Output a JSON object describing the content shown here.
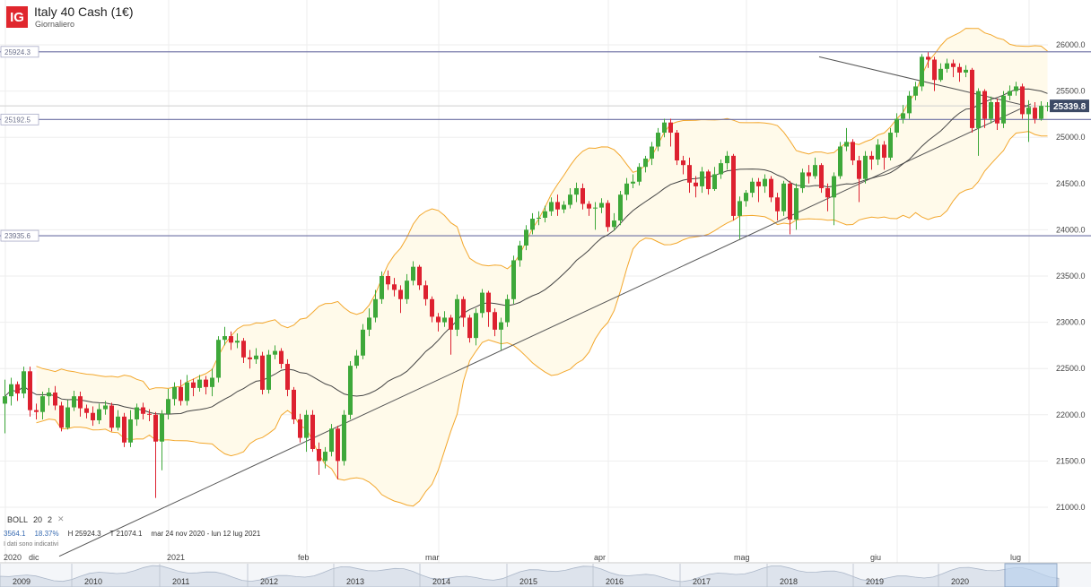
{
  "header": {
    "logo": "IG",
    "title": "Italy 40 Cash (1€)",
    "subtitle": "Giornaliero"
  },
  "indicator": {
    "name": "BOLL",
    "period": "20",
    "mult": "2",
    "close_icon": "close-icon",
    "stat1": "3564.1",
    "stat2": "18.37%",
    "stat3": "H 25924.3",
    "stat4": "T 21074.1",
    "range": "mar 24 nov 2020 - lun 12 lug 2021",
    "note": "I dati sono indicativi"
  },
  "navigator": {
    "years": [
      "2009",
      "2010",
      "2011",
      "2012",
      "2013",
      "2014",
      "2015",
      "2016",
      "2017",
      "2018",
      "2019",
      "2020"
    ]
  },
  "chart_data": {
    "type": "candlestick",
    "y_axis": {
      "min": 21000,
      "max": 26000,
      "step": 500,
      "position": "right",
      "tick_labels": [
        "21000.0",
        "21500.0",
        "22000.0",
        "22500.0",
        "23000.0",
        "23500.0",
        "24000.0",
        "24500.0",
        "25000.0",
        "25500.0",
        "26000.0"
      ]
    },
    "x_axis": {
      "labels": [
        "2020",
        "dic",
        "2021",
        "feb",
        "mar",
        "apr",
        "mag",
        "giu",
        "lug"
      ]
    },
    "horizontal_lines": [
      {
        "value": 25924.3,
        "label": "25924.3"
      },
      {
        "value": 25192.5,
        "label": "25192.5"
      },
      {
        "value": 23935.6,
        "label": "23935.6"
      }
    ],
    "current_price": {
      "value": 25339.8,
      "label": "25339.8"
    },
    "trendlines": [
      {
        "from": {
          "bar": 9,
          "value": 20470
        },
        "to": {
          "bar": 158,
          "value": 25180
        }
      },
      {
        "from": {
          "bar": 130,
          "value": 25870
        },
        "to": {
          "bar": 158,
          "value": 25420
        }
      }
    ],
    "colors": {
      "up": "#3ea83a",
      "down": "#dd2130",
      "band": "#f3a72c",
      "band_fill": "#fffaea",
      "sma": "#444444",
      "level_line": "#6b6fa3",
      "current_tag": "#3d4a66"
    },
    "candles": [
      [
        22120,
        22200,
        22380,
        21800
      ],
      [
        22200,
        22330,
        22400,
        22100
      ],
      [
        22330,
        22230,
        22360,
        22150
      ],
      [
        22230,
        22470,
        22520,
        22180
      ],
      [
        22470,
        22050,
        22520,
        21980
      ],
      [
        22050,
        22030,
        22120,
        21950
      ],
      [
        22030,
        22200,
        22250,
        21950
      ],
      [
        22200,
        22240,
        22290,
        22100
      ],
      [
        22240,
        22100,
        22310,
        22050
      ],
      [
        22100,
        21860,
        22140,
        21820
      ],
      [
        21860,
        22080,
        22160,
        21840
      ],
      [
        22080,
        22200,
        22260,
        22040
      ],
      [
        22200,
        22070,
        22250,
        21980
      ],
      [
        22070,
        22020,
        22110,
        21960
      ],
      [
        22020,
        21940,
        22090,
        21880
      ],
      [
        21940,
        22060,
        22120,
        21900
      ],
      [
        22060,
        22100,
        22150,
        22000
      ],
      [
        22100,
        21860,
        22130,
        21820
      ],
      [
        21860,
        21980,
        22050,
        21830
      ],
      [
        21980,
        21700,
        22020,
        21650
      ],
      [
        21700,
        21950,
        22050,
        21650
      ],
      [
        21950,
        22080,
        22120,
        21880
      ],
      [
        22080,
        22010,
        22130,
        21950
      ],
      [
        22010,
        22000,
        22060,
        21930
      ],
      [
        22000,
        21710,
        22030,
        21100
      ],
      [
        21710,
        22010,
        22050,
        21400
      ],
      [
        22010,
        22170,
        22280,
        21950
      ],
      [
        22170,
        22300,
        22350,
        22100
      ],
      [
        22300,
        22150,
        22380,
        22100
      ],
      [
        22150,
        22350,
        22430,
        22100
      ],
      [
        22350,
        22290,
        22390,
        22200
      ],
      [
        22290,
        22380,
        22430,
        22250
      ],
      [
        22380,
        22300,
        22420,
        22220
      ],
      [
        22300,
        22400,
        22500,
        22200
      ],
      [
        22400,
        22810,
        22850,
        22350
      ],
      [
        22810,
        22850,
        22950,
        22750
      ],
      [
        22850,
        22780,
        22900,
        22700
      ],
      [
        22780,
        22800,
        22880,
        22720
      ],
      [
        22800,
        22620,
        22830,
        22560
      ],
      [
        22620,
        22600,
        22700,
        22500
      ],
      [
        22600,
        22640,
        22720,
        22550
      ],
      [
        22640,
        22270,
        22680,
        22220
      ],
      [
        22270,
        22650,
        22700,
        22230
      ],
      [
        22650,
        22690,
        22750,
        22600
      ],
      [
        22690,
        22550,
        22720,
        22500
      ],
      [
        22550,
        22270,
        22600,
        22200
      ],
      [
        22270,
        21950,
        22300,
        21900
      ],
      [
        21950,
        21750,
        22010,
        21700
      ],
      [
        21750,
        22000,
        22050,
        21600
      ],
      [
        22000,
        21630,
        22050,
        21600
      ],
      [
        21630,
        21500,
        21700,
        21350
      ],
      [
        21500,
        21600,
        21650,
        21420
      ],
      [
        21600,
        21850,
        21900,
        21550
      ],
      [
        21850,
        21500,
        21880,
        21300
      ],
      [
        21500,
        22000,
        22050,
        21450
      ],
      [
        22000,
        22530,
        22580,
        21950
      ],
      [
        22530,
        22640,
        22700,
        22500
      ],
      [
        22640,
        22920,
        22980,
        22600
      ],
      [
        22920,
        23050,
        23150,
        22850
      ],
      [
        23050,
        23250,
        23350,
        23000
      ],
      [
        23250,
        23500,
        23550,
        23200
      ],
      [
        23500,
        23410,
        23560,
        23350
      ],
      [
        23410,
        23350,
        23480,
        23280
      ],
      [
        23350,
        23250,
        23400,
        23100
      ],
      [
        23250,
        23450,
        23520,
        23200
      ],
      [
        23450,
        23600,
        23660,
        23400
      ],
      [
        23600,
        23400,
        23620,
        23350
      ],
      [
        23400,
        23250,
        23450,
        23180
      ],
      [
        23250,
        23060,
        23280,
        23000
      ],
      [
        23060,
        23000,
        23100,
        22900
      ],
      [
        23000,
        23050,
        23120,
        22950
      ],
      [
        23050,
        22920,
        23080,
        22650
      ],
      [
        22920,
        23250,
        23300,
        22850
      ],
      [
        23250,
        23050,
        23280,
        22950
      ],
      [
        23050,
        22830,
        23080,
        22780
      ],
      [
        22830,
        23100,
        23150,
        22750
      ],
      [
        23100,
        23320,
        23360,
        23050
      ],
      [
        23320,
        23110,
        23340,
        22950
      ],
      [
        23110,
        22920,
        23150,
        22850
      ],
      [
        22920,
        23000,
        23050,
        22700
      ],
      [
        23000,
        23250,
        23300,
        22950
      ],
      [
        23250,
        23670,
        23720,
        23200
      ],
      [
        23670,
        23830,
        23880,
        23600
      ],
      [
        23830,
        24000,
        24050,
        23780
      ],
      [
        24000,
        24120,
        24180,
        23950
      ],
      [
        24120,
        24130,
        24200,
        24050
      ],
      [
        24130,
        24200,
        24260,
        24080
      ],
      [
        24200,
        24300,
        24350,
        24150
      ],
      [
        24300,
        24220,
        24380,
        24150
      ],
      [
        24220,
        24270,
        24310,
        24180
      ],
      [
        24270,
        24380,
        24450,
        24230
      ],
      [
        24380,
        24450,
        24510,
        24300
      ],
      [
        24450,
        24280,
        24500,
        24220
      ],
      [
        24280,
        24230,
        24310,
        24150
      ],
      [
        24230,
        24240,
        24300,
        24000
      ],
      [
        24240,
        24290,
        24340,
        24180
      ],
      [
        24290,
        24030,
        24320,
        23980
      ],
      [
        24030,
        24100,
        24180,
        23990
      ],
      [
        24100,
        24380,
        24420,
        24050
      ],
      [
        24380,
        24500,
        24560,
        24320
      ],
      [
        24500,
        24520,
        24600,
        24450
      ],
      [
        24520,
        24680,
        24720,
        24480
      ],
      [
        24680,
        24770,
        24800,
        24620
      ],
      [
        24770,
        24900,
        24950,
        24700
      ],
      [
        24900,
        25050,
        25100,
        24850
      ],
      [
        25050,
        25160,
        25200,
        25000
      ],
      [
        25160,
        25050,
        25200,
        24900
      ],
      [
        25050,
        24750,
        25080,
        24700
      ],
      [
        24750,
        24700,
        24800,
        24600
      ],
      [
        24700,
        24510,
        24780,
        24400
      ],
      [
        24510,
        24470,
        24580,
        24350
      ],
      [
        24470,
        24630,
        24680,
        24400
      ],
      [
        24630,
        24440,
        24650,
        24380
      ],
      [
        24440,
        24600,
        24680,
        24420
      ],
      [
        24600,
        24720,
        24760,
        24550
      ],
      [
        24720,
        24800,
        24850,
        24650
      ],
      [
        24800,
        24150,
        24820,
        24100
      ],
      [
        24150,
        24310,
        24360,
        23900
      ],
      [
        24310,
        24400,
        24430,
        24250
      ],
      [
        24400,
        24520,
        24560,
        24350
      ],
      [
        24520,
        24470,
        24560,
        24300
      ],
      [
        24470,
        24550,
        24600,
        24400
      ],
      [
        24550,
        24350,
        24580,
        24300
      ],
      [
        24350,
        24200,
        24400,
        24100
      ],
      [
        24200,
        24500,
        24530,
        24150
      ],
      [
        24500,
        24110,
        24530,
        23950
      ],
      [
        24110,
        24450,
        24500,
        24000
      ],
      [
        24450,
        24620,
        24660,
        24400
      ],
      [
        24620,
        24580,
        24700,
        24500
      ],
      [
        24580,
        24700,
        24780,
        24550
      ],
      [
        24700,
        24450,
        24720,
        24400
      ],
      [
        24450,
        24350,
        24500,
        24200
      ],
      [
        24350,
        24580,
        24620,
        24050
      ],
      [
        24580,
        24900,
        24950,
        24550
      ],
      [
        24900,
        24950,
        25100,
        24850
      ],
      [
        24950,
        24750,
        24980,
        24700
      ],
      [
        24750,
        24550,
        24800,
        24300
      ],
      [
        24550,
        24800,
        24850,
        24500
      ],
      [
        24800,
        24760,
        24850,
        24650
      ],
      [
        24760,
        24920,
        24980,
        24700
      ],
      [
        24920,
        24780,
        24960,
        24650
      ],
      [
        24780,
        25050,
        25100,
        24750
      ],
      [
        25050,
        25200,
        25260,
        25000
      ],
      [
        25200,
        25260,
        25350,
        25150
      ],
      [
        25260,
        25450,
        25500,
        25200
      ],
      [
        25450,
        25550,
        25600,
        25400
      ],
      [
        25550,
        25870,
        25900,
        25500
      ],
      [
        25870,
        25840,
        25920,
        25750
      ],
      [
        25840,
        25620,
        25870,
        25500
      ],
      [
        25620,
        25740,
        25800,
        25600
      ],
      [
        25740,
        25800,
        25850,
        25700
      ],
      [
        25800,
        25760,
        25840,
        25650
      ],
      [
        25760,
        25700,
        25800,
        25600
      ],
      [
        25700,
        25730,
        25780,
        25650
      ],
      [
        25730,
        25100,
        25750,
        25050
      ],
      [
        25100,
        25500,
        25530,
        24800
      ],
      [
        25500,
        25200,
        25520,
        25100
      ],
      [
        25200,
        25380,
        25440,
        25150
      ],
      [
        25380,
        25150,
        25420,
        25080
      ],
      [
        25150,
        25450,
        25500,
        25100
      ],
      [
        25450,
        25500,
        25560,
        25400
      ],
      [
        25500,
        25550,
        25600,
        25450
      ],
      [
        25550,
        25250,
        25580,
        25200
      ],
      [
        25250,
        25320,
        25400,
        24950
      ],
      [
        25320,
        25200,
        25380,
        25150
      ],
      [
        25200,
        25339.8,
        25390,
        25180
      ],
      [
        25339.8,
        25339.8,
        25380,
        25280
      ]
    ]
  }
}
